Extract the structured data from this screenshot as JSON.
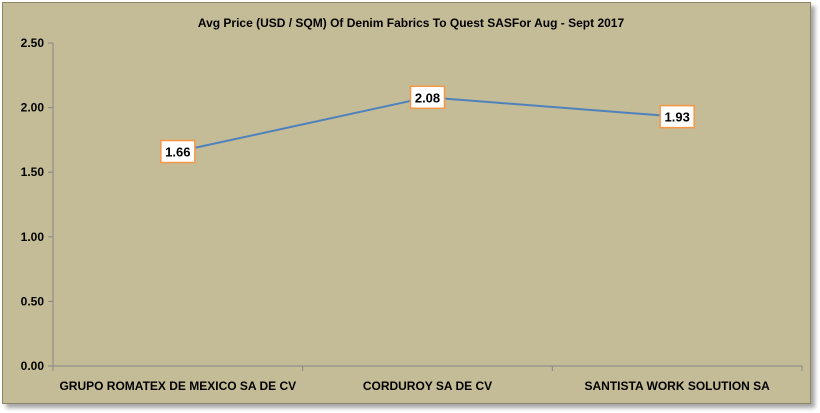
{
  "chart_data": {
    "type": "line",
    "title": "Avg Price (USD / SQM) Of Denim Fabrics To Quest SASFor Aug - Sept 2017",
    "categories": [
      "GRUPO ROMATEX DE MEXICO SA DE CV",
      "CORDUROY SA DE CV",
      "SANTISTA WORK SOLUTION SA"
    ],
    "values": [
      1.66,
      2.08,
      1.93
    ],
    "data_labels": [
      "1.66",
      "2.08",
      "1.93"
    ],
    "yticks": [
      "0.00",
      "0.50",
      "1.00",
      "1.50",
      "2.00",
      "2.50"
    ],
    "ylim": [
      0,
      2.5
    ],
    "grid": false,
    "legend": "none",
    "colors": {
      "background": "#c4bc96",
      "line": "#4f81bd",
      "label_border": "#f79646",
      "label_fill": "#ffffff",
      "axis": "#868686"
    }
  }
}
